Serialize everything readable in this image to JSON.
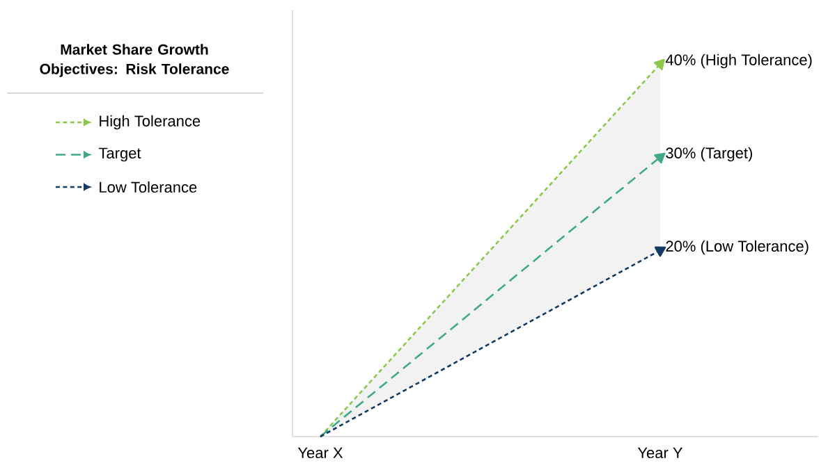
{
  "chart_data": {
    "type": "line",
    "title": "Market Share Growth Objectives: Risk Tolerance",
    "categories": [
      "Year X",
      "Year Y"
    ],
    "series": [
      {
        "name": "High Tolerance",
        "color": "#8cc84b",
        "line_style": "dotted",
        "values": [
          0,
          40
        ],
        "value_labels": [
          null,
          "40% (High Tolerance)"
        ]
      },
      {
        "name": "Target",
        "color": "#3fa98a",
        "line_style": "dashed",
        "values": [
          0,
          30
        ],
        "lower": [
          0,
          20
        ],
        "upper": [
          0,
          40
        ],
        "value_labels": [
          null,
          "30% (Target)"
        ]
      },
      {
        "name": "Low Tolerance",
        "color": "#123a63",
        "line_style": "dotted",
        "values": [
          0,
          20
        ],
        "value_labels": [
          null,
          "20% (Low Tolerance)"
        ]
      }
    ],
    "legend": "left",
    "marker": "triangle"
  }
}
